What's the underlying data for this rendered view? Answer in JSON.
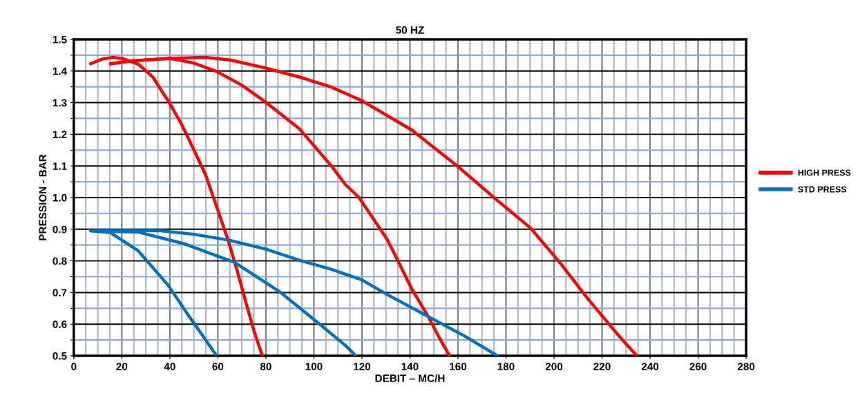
{
  "chart_data": {
    "type": "line",
    "title": "50 HZ",
    "xlabel": "DEBIT – MC/H",
    "ylabel": "PRESSION - BAR",
    "xlim": [
      0,
      280
    ],
    "xticks": [
      0,
      20,
      40,
      60,
      80,
      100,
      120,
      140,
      160,
      180,
      200,
      220,
      240,
      260,
      280
    ],
    "ylim": [
      0.5,
      1.5
    ],
    "yticks": [
      {
        "value": 0.5,
        "label": "0.5"
      },
      {
        "value": 0.55,
        "label": null
      },
      {
        "value": 0.6,
        "label": "0.6"
      },
      {
        "value": 0.65,
        "label": null
      },
      {
        "value": 0.7,
        "label": "0.7"
      },
      {
        "value": 0.75,
        "label": null
      },
      {
        "value": 0.8,
        "label": "0.8"
      },
      {
        "value": 0.85,
        "label": null
      },
      {
        "value": 0.9,
        "label": "0.9"
      },
      {
        "value": 0.95,
        "label": null
      },
      {
        "value": 1.0,
        "label": "1.0"
      },
      {
        "value": 1.05,
        "label": null
      },
      {
        "value": 1.1,
        "label": "1.1"
      },
      {
        "value": 1.15,
        "label": null
      },
      {
        "value": 1.2,
        "label": "1.2"
      },
      {
        "value": 1.25,
        "label": null
      },
      {
        "value": 1.3,
        "label": "1.3"
      },
      {
        "value": 1.35,
        "label": null
      },
      {
        "value": 1.4,
        "label": "1.4"
      },
      {
        "value": 1.45,
        "label": null
      },
      {
        "value": 1.5,
        "label": "1.5"
      }
    ],
    "grid": true,
    "legend": "right",
    "marker": "none",
    "line_style": "solid",
    "series": [
      {
        "name": "HIGH PRESS",
        "color": "#ff0000",
        "x": [
          7,
          12,
          16,
          20,
          27,
          33,
          40,
          45,
          50,
          55,
          59.4,
          64.2,
          68,
          72,
          75,
          78.5
        ],
        "values": [
          1.423,
          1.438,
          1.443,
          1.44,
          1.421,
          1.38,
          1.297,
          1.23,
          1.151,
          1.07,
          0.973,
          0.867,
          0.77,
          0.66,
          0.58,
          0.5
        ]
      },
      {
        "color": "#ff0000",
        "x": [
          15.3,
          25,
          40,
          50,
          59.4,
          70,
          79.5,
          94,
          107.3,
          113,
          118.8,
          125,
          130.4,
          135,
          140.7,
          147.6,
          152,
          156.5
        ],
        "values": [
          1.423,
          1.432,
          1.44,
          1.425,
          1.399,
          1.355,
          1.304,
          1.217,
          1.1,
          1.042,
          1.0,
          0.93,
          0.869,
          0.8,
          0.712,
          0.624,
          0.56,
          0.5
        ]
      },
      {
        "color": "#ff0000",
        "x": [
          15.3,
          25,
          40,
          55,
          65,
          79.5,
          93.9,
          107.3,
          120,
          140.7,
          160.3,
          176.4,
          190.2,
          202.9,
          214.4,
          227,
          234.5
        ],
        "values": [
          1.423,
          1.433,
          1.44,
          1.443,
          1.435,
          1.41,
          1.381,
          1.349,
          1.306,
          1.214,
          1.096,
          0.991,
          0.904,
          0.79,
          0.677,
          0.563,
          0.5
        ]
      },
      {
        "name": "STD PRESS",
        "color": "#0070c0",
        "x": [
          7.1,
          15.3,
          26.8,
          39.3,
          47.8,
          54,
          59.5
        ],
        "values": [
          0.895,
          0.889,
          0.832,
          0.723,
          0.627,
          0.56,
          0.5
        ]
      },
      {
        "color": "#0070c0",
        "x": [
          7.1,
          26.8,
          46,
          67,
          86.2,
          101.6,
          113.1,
          117.5
        ],
        "values": [
          0.895,
          0.891,
          0.854,
          0.795,
          0.7,
          0.605,
          0.533,
          0.5
        ]
      },
      {
        "color": "#0070c0",
        "x": [
          7.1,
          20,
          36.3,
          50,
          65,
          80,
          93.9,
          107.3,
          120,
          130.4,
          147.6,
          162.6,
          176.5
        ],
        "values": [
          0.895,
          0.896,
          0.895,
          0.884,
          0.865,
          0.837,
          0.802,
          0.773,
          0.74,
          0.694,
          0.624,
          0.563,
          0.5
        ]
      }
    ]
  }
}
